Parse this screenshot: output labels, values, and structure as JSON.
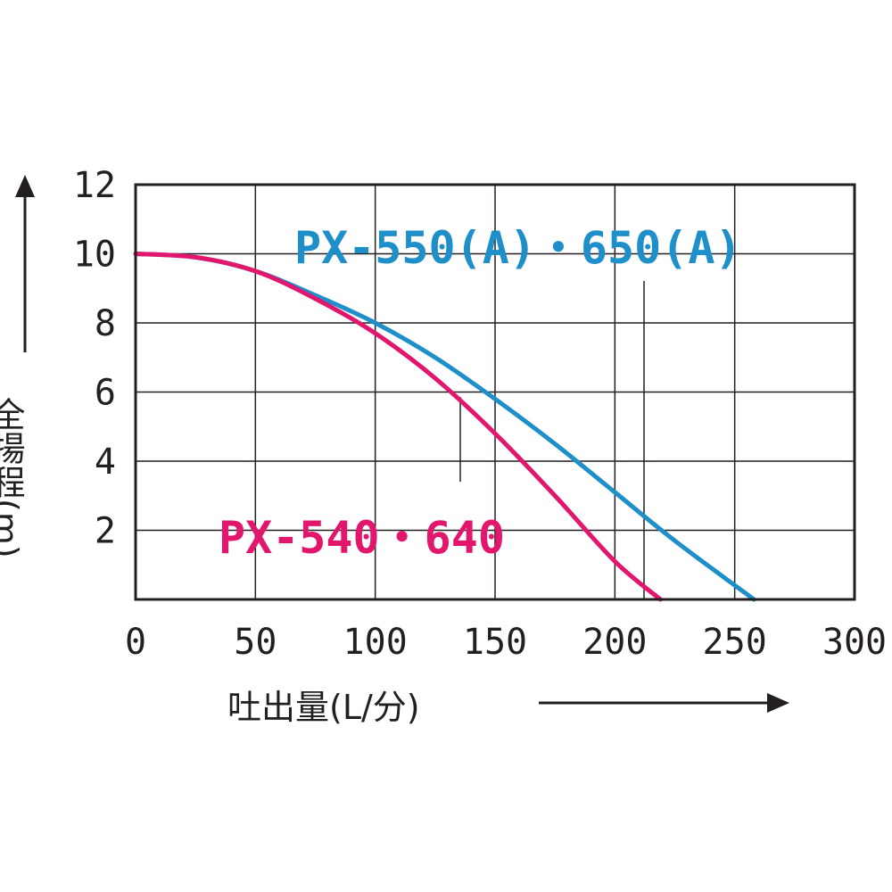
{
  "chart_data": {
    "type": "line",
    "xlabel": "吐出量(L/分)",
    "ylabel": "全揚程(m)",
    "xlim": [
      0,
      300
    ],
    "ylim": [
      0,
      12
    ],
    "x_ticks": [
      "0",
      "50",
      "100",
      "150",
      "200",
      "250",
      "300"
    ],
    "y_ticks": [
      "2",
      "4",
      "6",
      "8",
      "10",
      "12"
    ],
    "grid": true,
    "series": [
      {
        "name": "PX-550(A)・650(A)",
        "color": "#1f8fca",
        "x": [
          0,
          25,
          50,
          75,
          100,
          125,
          150,
          175,
          200,
          225,
          258
        ],
        "y": [
          10,
          9.9,
          9.5,
          8.8,
          8.0,
          7.0,
          5.8,
          4.5,
          3.1,
          1.7,
          0
        ]
      },
      {
        "name": "PX-540・640",
        "color": "#e2166d",
        "x": [
          0,
          25,
          50,
          75,
          100,
          125,
          150,
          175,
          200,
          219
        ],
        "y": [
          10,
          9.9,
          9.5,
          8.7,
          7.7,
          6.4,
          4.8,
          3.0,
          1.1,
          0
        ]
      }
    ]
  },
  "annotations": {
    "arrow_color": "#231f20"
  }
}
